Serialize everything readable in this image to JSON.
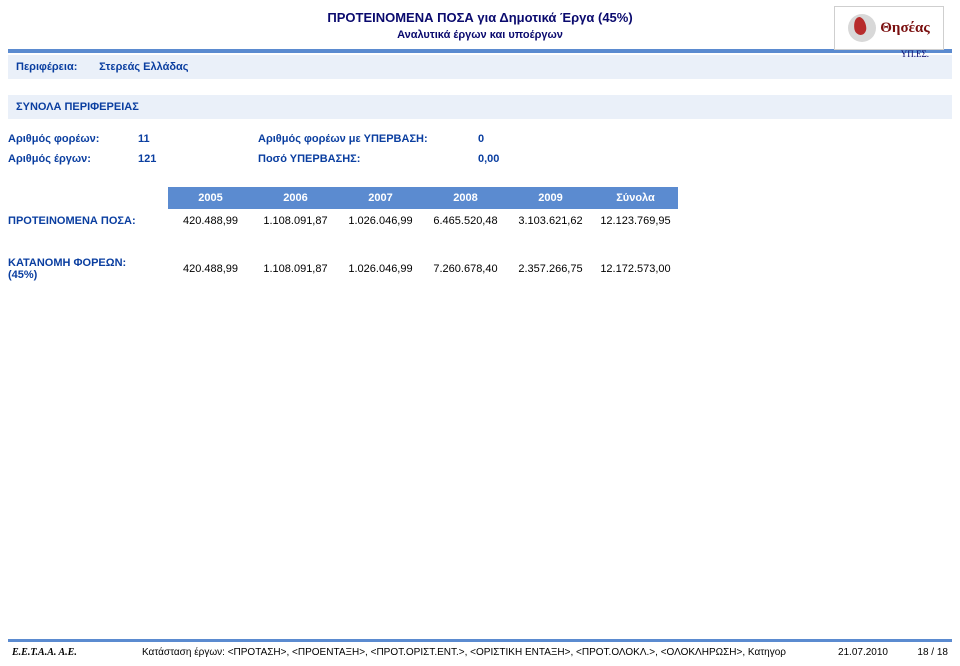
{
  "header": {
    "title1": "ΠΡΟΤΕΙΝΟΜΕΝΑ ΠΟΣΑ για Δημοτικά Έργα (45%)",
    "title2": "Αναλυτικά έργων και υποέργων",
    "logo_text": "Θησέας",
    "logo_sub": "ΥΠ.ΕΣ."
  },
  "region": {
    "label": "Περιφέρεια:",
    "value": "Στερεάς Ελλάδας"
  },
  "section_title": "ΣΥΝΟΛΑ ΠΕΡΙΦΕΡΕΙΑΣ",
  "stats": {
    "r1": {
      "l1": "Αριθμός φορέων:",
      "v1": "11",
      "l2": "Αριθμός φορέων με ΥΠΕΡΒΑΣΗ:",
      "v2": "0"
    },
    "r2": {
      "l1": "Αριθμός έργων:",
      "v1": "121",
      "l2": "Ποσό ΥΠΕΡΒΑΣΗΣ:",
      "v2": "0,00"
    }
  },
  "years": [
    "2005",
    "2006",
    "2007",
    "2008",
    "2009",
    "Σύνολα"
  ],
  "rows": {
    "r1": {
      "label": "ΠΡΟΤΕΙΝΟΜΕΝΑ ΠΟΣΑ:",
      "vals": [
        "420.488,99",
        "1.108.091,87",
        "1.026.046,99",
        "6.465.520,48",
        "3.103.621,62",
        "12.123.769,95"
      ]
    },
    "r2": {
      "label": "ΚΑΤΑΝΟΜΗ ΦΟΡΕΩΝ:",
      "label_sub": "(45%)",
      "vals": [
        "420.488,99",
        "1.108.091,87",
        "1.026.046,99",
        "7.260.678,40",
        "2.357.266,75",
        "12.172.573,00"
      ]
    }
  },
  "footer": {
    "org": "Ε.Ε.Τ.Α.Α.  Α.Ε.",
    "mid": "Κατάσταση έργων: <ΠΡΟΤΑΣΗ>, <ΠΡΟΕΝΤΑΞΗ>, <ΠΡΟΤ.ΟΡΙΣΤ.ΕΝΤ.>, <ΟΡΙΣΤΙΚΗ ΕΝΤΑΞΗ>, <ΠΡΟΤ.ΟΛΟΚΛ.>, <ΟΛΟΚΛΗΡΩΣΗ>, Κατηγορ",
    "date": "21.07.2010",
    "page": "18 / 18"
  },
  "colors": {
    "blue_bar": "#5b8bd0",
    "light_blue": "#eaf0f9",
    "text_blue": "#0a3ea0",
    "title_blue": "#0a0a6e"
  }
}
